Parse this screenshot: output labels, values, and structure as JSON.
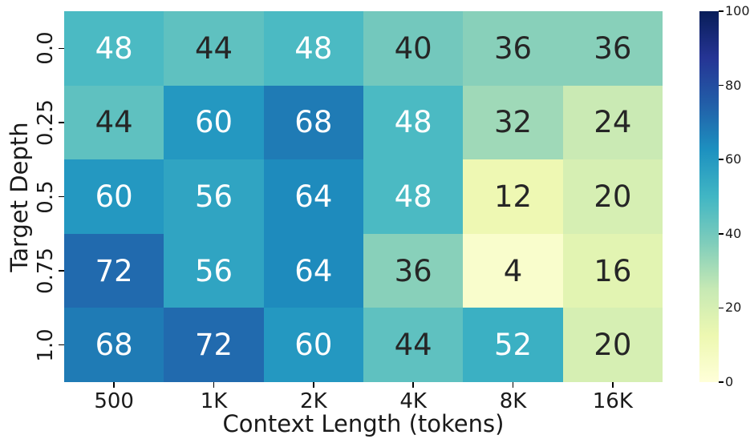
{
  "figure": {
    "background": "#ffffff"
  },
  "chart_data": {
    "type": "heatmap",
    "title": "",
    "xlabel": "Context Length (tokens)",
    "ylabel": "Target Depth",
    "x_categories": [
      "500",
      "1K",
      "2K",
      "4K",
      "8K",
      "16K"
    ],
    "y_categories": [
      "0.0",
      "0.25",
      "0.5",
      "0.75",
      "1.0"
    ],
    "values": [
      [
        48,
        44,
        48,
        40,
        36,
        36
      ],
      [
        44,
        60,
        68,
        48,
        32,
        24
      ],
      [
        60,
        56,
        64,
        48,
        12,
        20
      ],
      [
        72,
        56,
        64,
        36,
        4,
        16
      ],
      [
        68,
        72,
        60,
        44,
        52,
        20
      ]
    ],
    "vmin": 0,
    "vmax": 100,
    "colorbar_ticks": [
      0,
      20,
      40,
      60,
      80,
      100
    ],
    "colorbar_position": "right",
    "grid": false,
    "colormap_name": "YlGnBu",
    "colormap_stops": [
      {
        "pos": 0.0,
        "color": "#ffffd9"
      },
      {
        "pos": 0.125,
        "color": "#edf8b1"
      },
      {
        "pos": 0.25,
        "color": "#c7e9b4"
      },
      {
        "pos": 0.375,
        "color": "#7fcdbb"
      },
      {
        "pos": 0.5,
        "color": "#41b6c4"
      },
      {
        "pos": 0.625,
        "color": "#1d91c0"
      },
      {
        "pos": 0.75,
        "color": "#225ea8"
      },
      {
        "pos": 0.875,
        "color": "#253494"
      },
      {
        "pos": 1.0,
        "color": "#081d58"
      }
    ],
    "annotation_text_colors": {
      "light": "#ffffff",
      "dark": "#262626"
    }
  }
}
